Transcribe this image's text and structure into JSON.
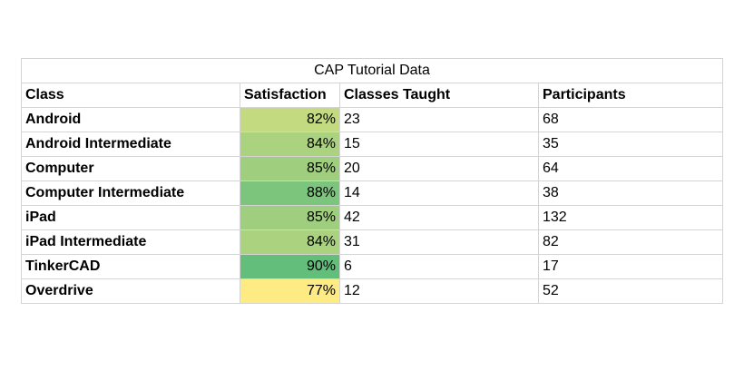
{
  "chart_data": {
    "type": "table",
    "title": "CAP Tutorial Data",
    "columns": [
      "Class",
      "Satisfaction",
      "Classes Taught",
      "Participants"
    ],
    "rows": [
      {
        "class": "Android",
        "satisfaction": "82%",
        "satisfaction_value": 82,
        "classes_taught": "23",
        "participants": "68"
      },
      {
        "class": "Android Intermediate",
        "satisfaction": "84%",
        "satisfaction_value": 84,
        "classes_taught": "15",
        "participants": "35"
      },
      {
        "class": "Computer",
        "satisfaction": "85%",
        "satisfaction_value": 85,
        "classes_taught": "20",
        "participants": "64"
      },
      {
        "class": "Computer Intermediate",
        "satisfaction": "88%",
        "satisfaction_value": 88,
        "classes_taught": "14",
        "participants": "38"
      },
      {
        "class": "iPad",
        "satisfaction": "85%",
        "satisfaction_value": 85,
        "classes_taught": "42",
        "participants": "132"
      },
      {
        "class": "iPad Intermediate",
        "satisfaction": "84%",
        "satisfaction_value": 84,
        "classes_taught": "31",
        "participants": "82"
      },
      {
        "class": "TinkerCAD",
        "satisfaction": "90%",
        "satisfaction_value": 90,
        "classes_taught": "6",
        "participants": "17"
      },
      {
        "class": "Overdrive",
        "satisfaction": "77%",
        "satisfaction_value": 77,
        "classes_taught": "12",
        "participants": "52"
      }
    ],
    "color_scale": {
      "min_color": "#ffeb84",
      "max_color": "#63be7b"
    }
  }
}
